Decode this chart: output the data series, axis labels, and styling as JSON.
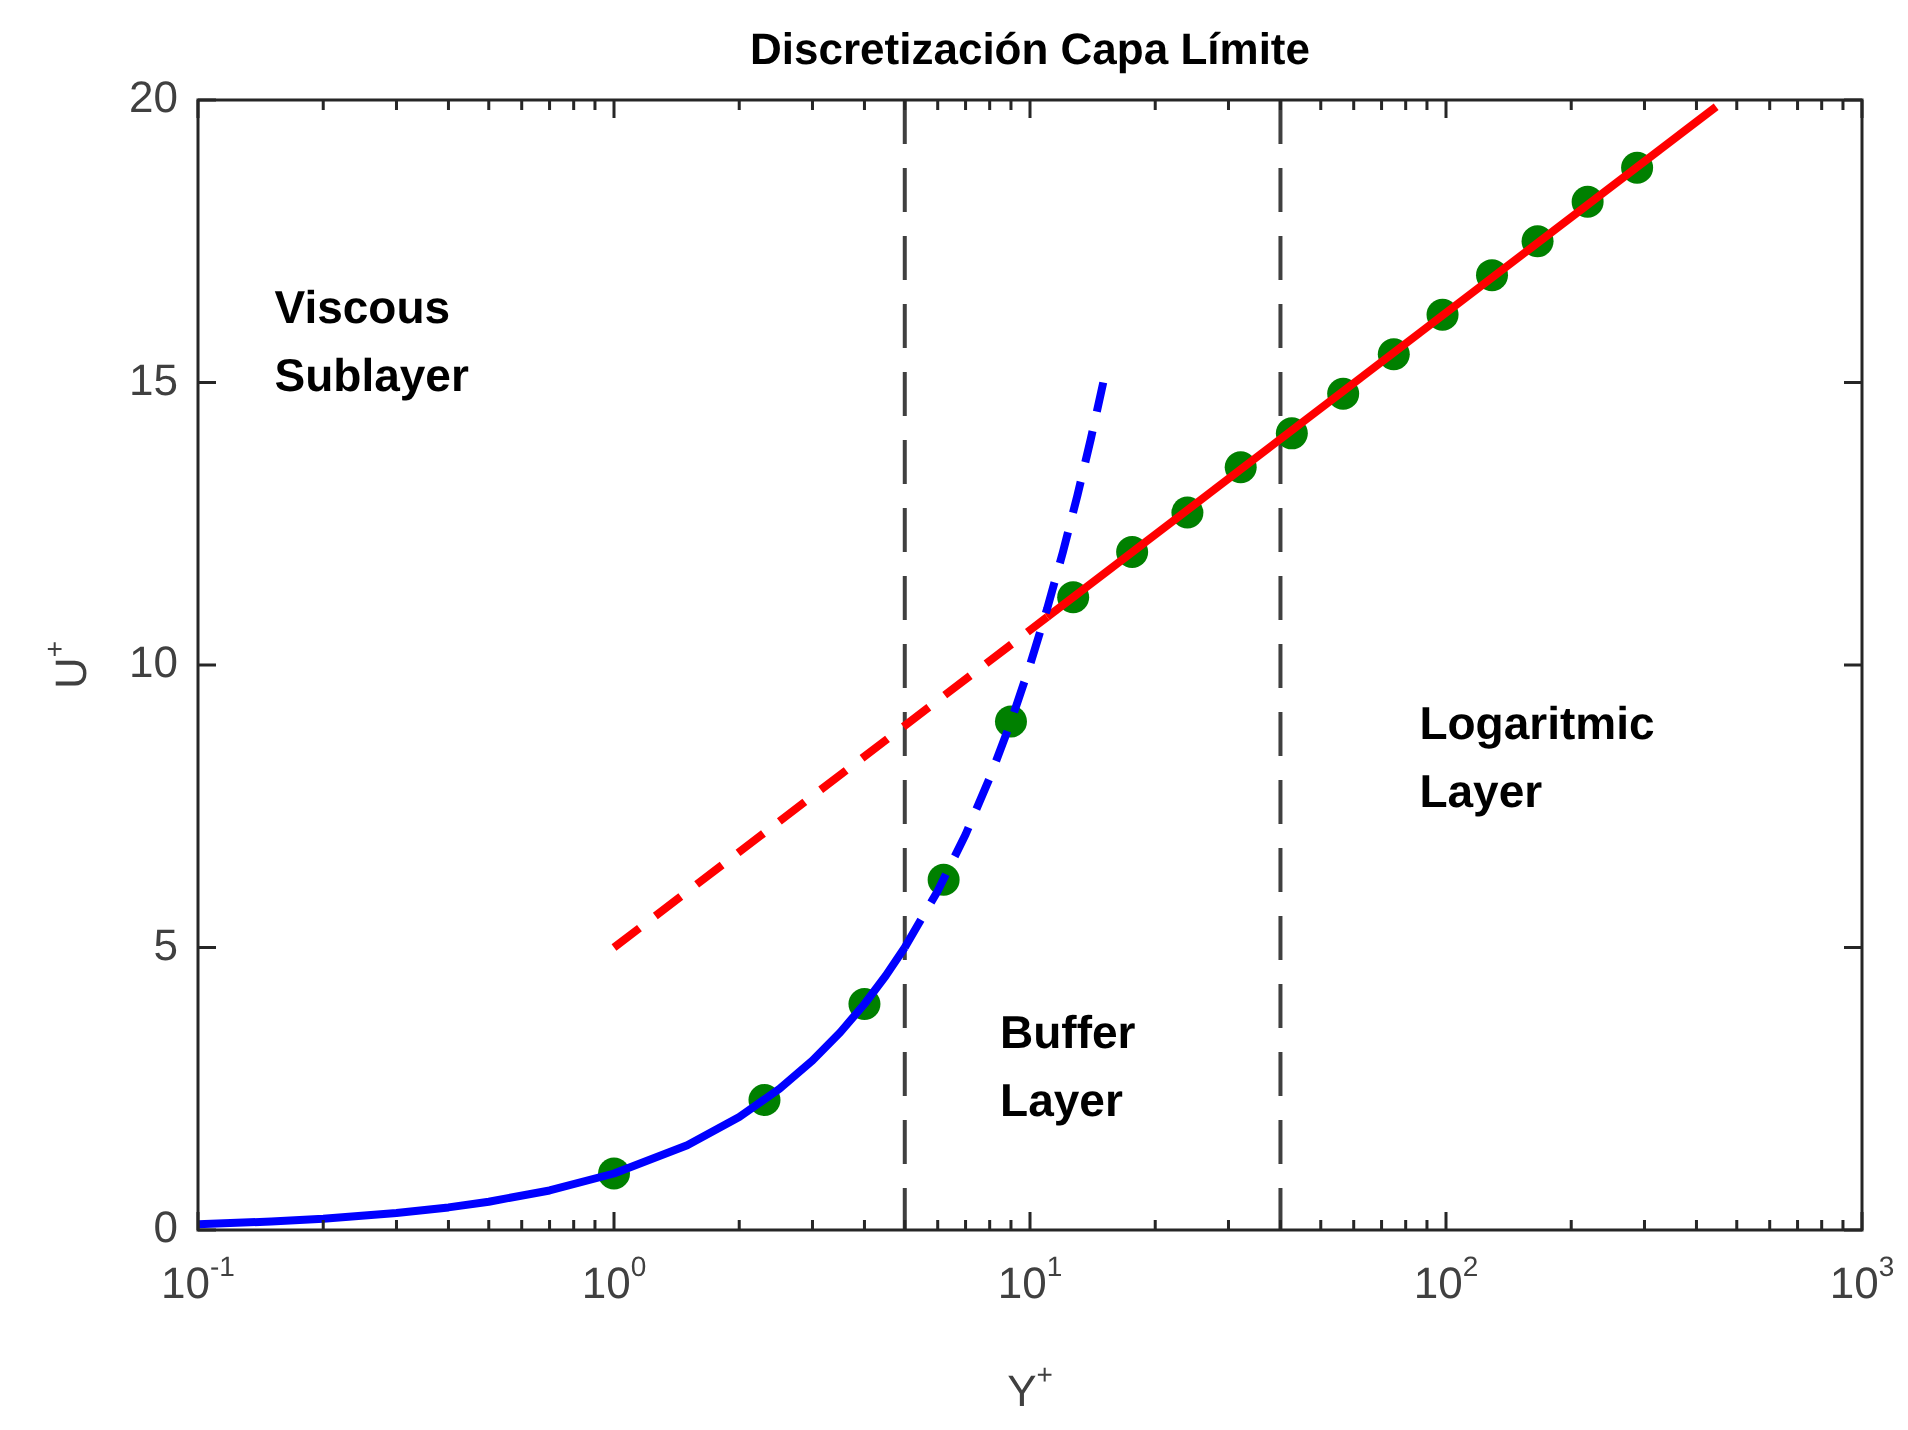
{
  "chart_data": {
    "type": "line",
    "title": "Discretización Capa Límite",
    "xlabel": "Y$^{+}$",
    "ylabel": "U$^{+}$",
    "log": "x",
    "xlim": [
      0.1,
      1000
    ],
    "ylim": [
      0,
      20
    ],
    "xticks": [
      {
        "value": 0.1,
        "label": "10$^{-1}$"
      },
      {
        "value": 0.2,
        "label": null
      },
      {
        "value": 0.3,
        "label": null
      },
      {
        "value": 0.4,
        "label": null
      },
      {
        "value": 0.5,
        "label": null
      },
      {
        "value": 0.6,
        "label": null
      },
      {
        "value": 0.7,
        "label": null
      },
      {
        "value": 0.8,
        "label": null
      },
      {
        "value": 0.9,
        "label": null
      },
      {
        "value": 1,
        "label": "10$^{0}$"
      },
      {
        "value": 2,
        "label": null
      },
      {
        "value": 3,
        "label": null
      },
      {
        "value": 4,
        "label": null
      },
      {
        "value": 5,
        "label": null
      },
      {
        "value": 6,
        "label": null
      },
      {
        "value": 7,
        "label": null
      },
      {
        "value": 8,
        "label": null
      },
      {
        "value": 9,
        "label": null
      },
      {
        "value": 10,
        "label": "10$^{1}$"
      },
      {
        "value": 20,
        "label": null
      },
      {
        "value": 30,
        "label": null
      },
      {
        "value": 40,
        "label": null
      },
      {
        "value": 50,
        "label": null
      },
      {
        "value": 60,
        "label": null
      },
      {
        "value": 70,
        "label": null
      },
      {
        "value": 80,
        "label": null
      },
      {
        "value": 90,
        "label": null
      },
      {
        "value": 100,
        "label": "10$^{2}$"
      },
      {
        "value": 200,
        "label": null
      },
      {
        "value": 300,
        "label": null
      },
      {
        "value": 400,
        "label": null
      },
      {
        "value": 500,
        "label": null
      },
      {
        "value": 600,
        "label": null
      },
      {
        "value": 700,
        "label": null
      },
      {
        "value": 800,
        "label": null
      },
      {
        "value": 900,
        "label": null
      },
      {
        "value": 1000,
        "label": "10$^{3}$"
      }
    ],
    "yticks": [
      0,
      5,
      10,
      15,
      20
    ],
    "legend": false,
    "series": [
      {
        "type": "line",
        "color": "#0000ff",
        "marker": "none",
        "line_style": "solid",
        "x": [
          0.1,
          0.15,
          0.2,
          0.3,
          0.4,
          0.5,
          0.7,
          1,
          1.5,
          2,
          2.5,
          3,
          3.5,
          4,
          4.5,
          5
        ],
        "values": [
          0.1,
          0.15,
          0.2,
          0.3,
          0.4,
          0.5,
          0.7,
          1,
          1.5,
          2,
          2.5,
          3,
          3.5,
          4,
          4.5,
          5
        ]
      },
      {
        "type": "line",
        "color": "#0000ff",
        "marker": "none",
        "line_style": "dashed",
        "x": [
          5,
          6,
          7,
          8,
          9,
          10,
          11,
          12,
          13,
          14,
          15
        ],
        "values": [
          5,
          6,
          7,
          8,
          9,
          10,
          11,
          12,
          13,
          14,
          15
        ]
      },
      {
        "type": "line",
        "color": "#ff0000",
        "marker": "none",
        "line_style": "dashed",
        "x": [
          1,
          11
        ],
        "values": [
          5,
          10.85
        ]
      },
      {
        "type": "line",
        "color": "#ff0000",
        "marker": "none",
        "line_style": "solid",
        "x": [
          11,
          446
        ],
        "values": [
          10.85,
          19.88
        ]
      },
      {
        "type": "scatter",
        "color": "#008000",
        "marker": "circle",
        "x": [
          1,
          2.3,
          4,
          6.2,
          9,
          12.7,
          17.6,
          23.9,
          32.1,
          42.6,
          56.6,
          74.9,
          98.1,
          129,
          166,
          219,
          288
        ],
        "values": [
          1,
          2.3,
          4,
          6.2,
          9,
          11.2,
          12,
          12.7,
          13.5,
          14.1,
          14.8,
          15.5,
          16.2,
          16.9,
          17.5,
          18.2,
          18.8
        ]
      }
    ],
    "ref_lines": [
      {
        "axis": "x",
        "value": 5,
        "color": "#404040",
        "line_style": "dashed"
      },
      {
        "axis": "x",
        "value": 40,
        "color": "#404040",
        "line_style": "dashed"
      }
    ],
    "annotations": [
      "Viscous\nSublayer",
      "Buffer\nLayer",
      "Logaritmic\nLayer"
    ]
  }
}
